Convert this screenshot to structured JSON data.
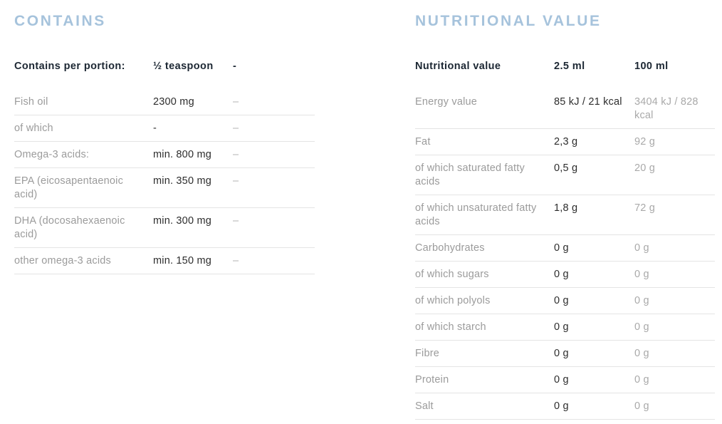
{
  "colors": {
    "title_accent": "#a6c3dc",
    "header_text": "#1c2733",
    "label_gray": "#9b9b9b",
    "value_dark": "#2d2d2d",
    "value_muted": "#a9a9a9",
    "divider": "#e4e4e4",
    "background": "#ffffff"
  },
  "contains": {
    "title": "CONTAINS",
    "header": {
      "label": "Contains per portion:",
      "col1": "½ teaspoon",
      "col2": "-"
    },
    "rows": [
      {
        "label": "Fish oil",
        "col1": "2300 mg",
        "col2": "–"
      },
      {
        "label": "of which",
        "col1": "-",
        "col2": "–"
      },
      {
        "label": "Omega-3 acids:",
        "col1": "min. 800 mg",
        "col2": "–"
      },
      {
        "label": "EPA (eicosapentaenoic acid)",
        "col1": "min. 350 mg",
        "col2": "–"
      },
      {
        "label": "DHA (docosahexaenoic acid)",
        "col1": "min. 300 mg",
        "col2": "–"
      },
      {
        "label": "other omega-3 acids",
        "col1": "min. 150 mg",
        "col2": "–"
      }
    ]
  },
  "nutrition": {
    "title": "NUTRITIONAL VALUE",
    "header": {
      "label": "Nutritional value",
      "col1": "2.5 ml",
      "col2": "100 ml"
    },
    "rows": [
      {
        "label": "Energy value",
        "col1": "85 kJ / 21 kcal",
        "col2": "3404 kJ / 828 kcal"
      },
      {
        "label": "Fat",
        "col1": "2,3 g",
        "col2": "92 g"
      },
      {
        "label": "of which saturated fatty acids",
        "col1": "0,5 g",
        "col2": "20 g"
      },
      {
        "label": "of which unsaturated fatty acids",
        "col1": "1,8 g",
        "col2": "72 g"
      },
      {
        "label": "Carbohydrates",
        "col1": "0 g",
        "col2": "0 g"
      },
      {
        "label": "of which sugars",
        "col1": "0 g",
        "col2": "0 g"
      },
      {
        "label": "of which polyols",
        "col1": "0 g",
        "col2": "0 g"
      },
      {
        "label": "of which starch",
        "col1": "0 g",
        "col2": "0 g"
      },
      {
        "label": "Fibre",
        "col1": "0 g",
        "col2": "0 g"
      },
      {
        "label": "Protein",
        "col1": "0 g",
        "col2": "0 g"
      },
      {
        "label": "Salt",
        "col1": "0 g",
        "col2": "0 g"
      }
    ]
  }
}
